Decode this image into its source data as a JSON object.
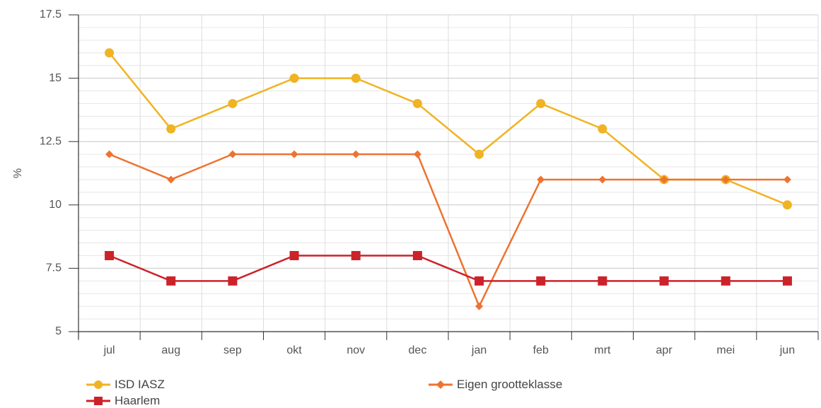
{
  "chart_data": {
    "type": "line",
    "ylabel": "%",
    "xlabel": "",
    "categories": [
      "jul",
      "aug",
      "sep",
      "okt",
      "nov",
      "dec",
      "jan",
      "feb",
      "mrt",
      "apr",
      "mei",
      "jun"
    ],
    "ylim": [
      5,
      17.5
    ],
    "yticks": [
      "5",
      "7.5",
      "10",
      "12.5",
      "15",
      "17.5"
    ],
    "grid": true,
    "legend_position": "bottom-left",
    "series": [
      {
        "name": "ISD IASZ",
        "color": "#f0b323",
        "marker": "circle",
        "values": [
          16,
          13,
          14,
          15,
          15,
          14,
          12,
          14,
          13,
          11,
          11,
          10
        ]
      },
      {
        "name": "Eigen grootteklasse",
        "color": "#ee7230",
        "marker": "diamond",
        "values": [
          12,
          11,
          12,
          12,
          12,
          12,
          6,
          11,
          11,
          11,
          11,
          11
        ]
      },
      {
        "name": "Haarlem",
        "color": "#cc2229",
        "marker": "square",
        "values": [
          8,
          7,
          7,
          8,
          8,
          8,
          7,
          7,
          7,
          7,
          7,
          7
        ]
      }
    ]
  }
}
